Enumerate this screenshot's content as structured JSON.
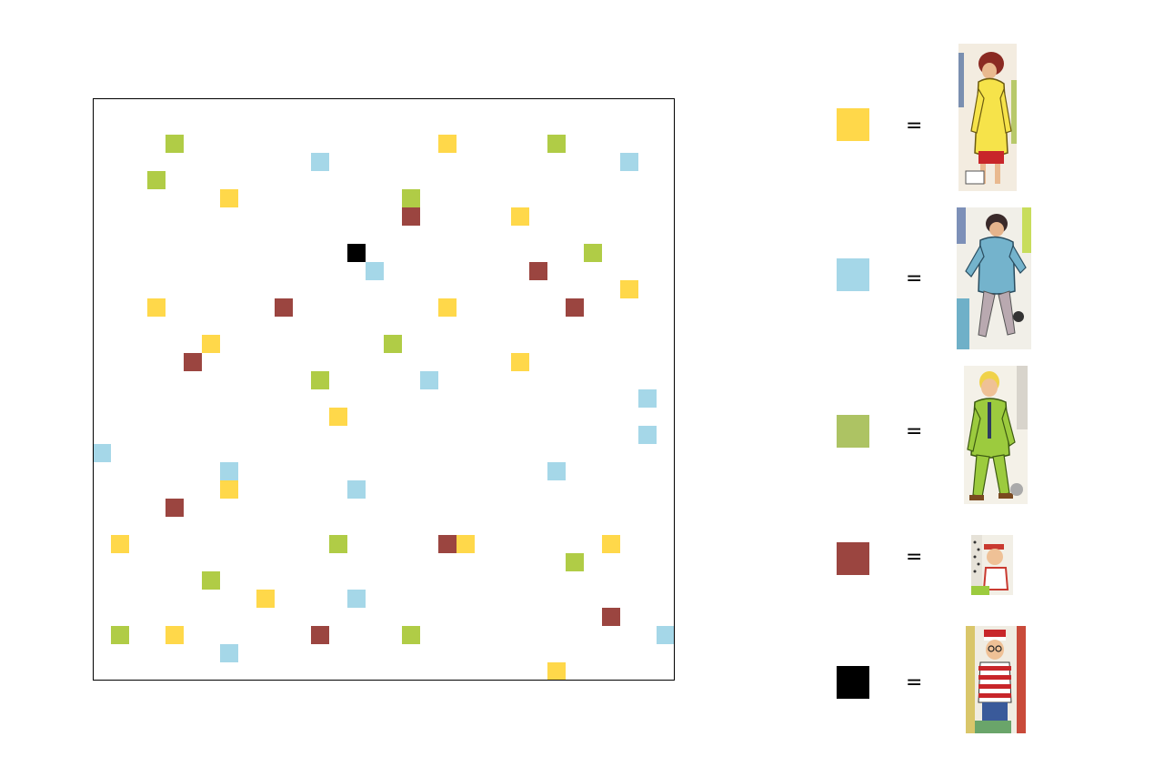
{
  "grid": {
    "columns": 32,
    "rows": 32,
    "cells": [
      {
        "col": 4,
        "row": 2,
        "kind": "green"
      },
      {
        "col": 19,
        "row": 2,
        "kind": "yellow"
      },
      {
        "col": 25,
        "row": 2,
        "kind": "green"
      },
      {
        "col": 12,
        "row": 3,
        "kind": "blue"
      },
      {
        "col": 29,
        "row": 3,
        "kind": "blue"
      },
      {
        "col": 3,
        "row": 4,
        "kind": "green"
      },
      {
        "col": 7,
        "row": 5,
        "kind": "yellow"
      },
      {
        "col": 17,
        "row": 5,
        "kind": "green"
      },
      {
        "col": 17,
        "row": 6,
        "kind": "red"
      },
      {
        "col": 23,
        "row": 6,
        "kind": "yellow"
      },
      {
        "col": 14,
        "row": 8,
        "kind": "black"
      },
      {
        "col": 27,
        "row": 8,
        "kind": "green"
      },
      {
        "col": 15,
        "row": 9,
        "kind": "blue"
      },
      {
        "col": 24,
        "row": 9,
        "kind": "red"
      },
      {
        "col": 29,
        "row": 10,
        "kind": "yellow"
      },
      {
        "col": 3,
        "row": 11,
        "kind": "yellow"
      },
      {
        "col": 10,
        "row": 11,
        "kind": "red"
      },
      {
        "col": 19,
        "row": 11,
        "kind": "yellow"
      },
      {
        "col": 26,
        "row": 11,
        "kind": "red"
      },
      {
        "col": 6,
        "row": 13,
        "kind": "yellow"
      },
      {
        "col": 16,
        "row": 13,
        "kind": "green"
      },
      {
        "col": 5,
        "row": 14,
        "kind": "red"
      },
      {
        "col": 23,
        "row": 14,
        "kind": "yellow"
      },
      {
        "col": 12,
        "row": 15,
        "kind": "green"
      },
      {
        "col": 18,
        "row": 15,
        "kind": "blue"
      },
      {
        "col": 30,
        "row": 16,
        "kind": "blue"
      },
      {
        "col": 13,
        "row": 17,
        "kind": "yellow"
      },
      {
        "col": 30,
        "row": 18,
        "kind": "blue"
      },
      {
        "col": 0,
        "row": 19,
        "kind": "blue"
      },
      {
        "col": 7,
        "row": 20,
        "kind": "blue"
      },
      {
        "col": 25,
        "row": 20,
        "kind": "blue"
      },
      {
        "col": 7,
        "row": 21,
        "kind": "yellow"
      },
      {
        "col": 14,
        "row": 21,
        "kind": "blue"
      },
      {
        "col": 4,
        "row": 22,
        "kind": "red"
      },
      {
        "col": 1,
        "row": 24,
        "kind": "yellow"
      },
      {
        "col": 13,
        "row": 24,
        "kind": "green"
      },
      {
        "col": 19,
        "row": 24,
        "kind": "red"
      },
      {
        "col": 20,
        "row": 24,
        "kind": "yellow"
      },
      {
        "col": 28,
        "row": 24,
        "kind": "yellow"
      },
      {
        "col": 26,
        "row": 25,
        "kind": "green"
      },
      {
        "col": 6,
        "row": 26,
        "kind": "green"
      },
      {
        "col": 9,
        "row": 27,
        "kind": "yellow"
      },
      {
        "col": 14,
        "row": 27,
        "kind": "blue"
      },
      {
        "col": 28,
        "row": 28,
        "kind": "red"
      },
      {
        "col": 1,
        "row": 29,
        "kind": "green"
      },
      {
        "col": 4,
        "row": 29,
        "kind": "yellow"
      },
      {
        "col": 12,
        "row": 29,
        "kind": "red"
      },
      {
        "col": 17,
        "row": 29,
        "kind": "green"
      },
      {
        "col": 31,
        "row": 29,
        "kind": "blue"
      },
      {
        "col": 7,
        "row": 30,
        "kind": "blue"
      },
      {
        "col": 25,
        "row": 31,
        "kind": "yellow"
      }
    ]
  },
  "colors": {
    "yellow": "#ffd84a",
    "blue": "#a5d7e8",
    "green": "#b0cc46",
    "red": "#9b4540",
    "black": "#000000",
    "sage": "#adc363"
  },
  "legend": [
    {
      "kind": "yellow",
      "equals": "=",
      "figure": "woman-in-yellow-coat"
    },
    {
      "kind": "blue",
      "equals": "=",
      "figure": "man-in-blue-jacket"
    },
    {
      "kind": "green",
      "equals": "=",
      "figure": "man-in-green-suit"
    },
    {
      "kind": "red",
      "equals": "=",
      "figure": "small-crowd-face"
    },
    {
      "kind": "black",
      "equals": "=",
      "figure": "waldo-striped-shirt"
    }
  ]
}
